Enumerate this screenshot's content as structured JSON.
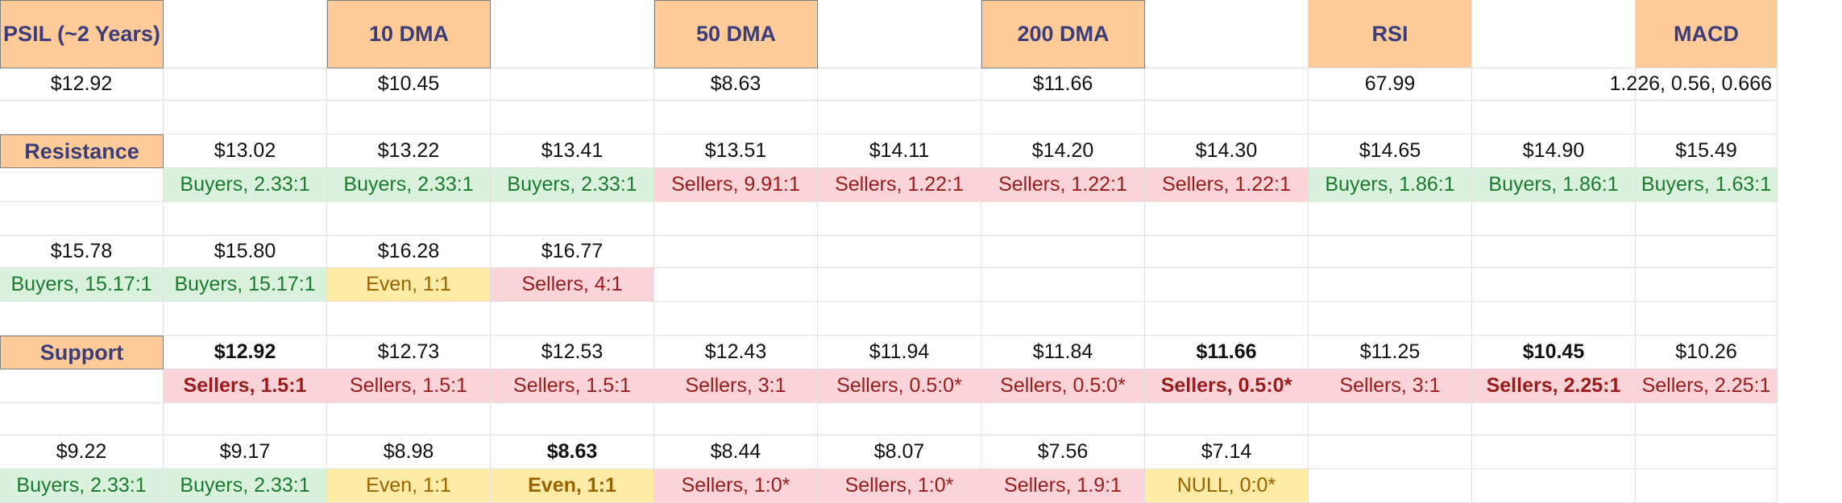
{
  "header": {
    "psil": "PSIL (~2 Years)",
    "dma10": "10 DMA",
    "dma50": "50 DMA",
    "dma200": "200 DMA",
    "rsi": "RSI",
    "macd": "MACD"
  },
  "current": {
    "price": "$12.92",
    "dma10": "$10.45",
    "dma50": "$8.63",
    "dma200": "$11.66",
    "rsi": "67.99",
    "macd": "1.226, 0.56, 0.666"
  },
  "resistance": {
    "label": "Resistance",
    "levels": [
      {
        "price": "$13.02",
        "ratio": "Buyers, 2.33:1",
        "tone": "buyers"
      },
      {
        "price": "$13.22",
        "ratio": "Buyers, 2.33:1",
        "tone": "buyers"
      },
      {
        "price": "$13.41",
        "ratio": "Buyers, 2.33:1",
        "tone": "buyers"
      },
      {
        "price": "$13.51",
        "ratio": "Sellers, 9.91:1",
        "tone": "sellers"
      },
      {
        "price": "$14.11",
        "ratio": "Sellers, 1.22:1",
        "tone": "sellers"
      },
      {
        "price": "$14.20",
        "ratio": "Sellers, 1.22:1",
        "tone": "sellers"
      },
      {
        "price": "$14.30",
        "ratio": "Sellers, 1.22:1",
        "tone": "sellers"
      },
      {
        "price": "$14.65",
        "ratio": "Buyers, 1.86:1",
        "tone": "buyers"
      },
      {
        "price": "$14.90",
        "ratio": "Buyers, 1.86:1",
        "tone": "buyers"
      },
      {
        "price": "$15.49",
        "ratio": "Buyers, 1.63:1",
        "tone": "buyers"
      },
      {
        "price": "$15.78",
        "ratio": "Buyers, 15.17:1",
        "tone": "buyers"
      },
      {
        "price": "$15.80",
        "ratio": "Buyers, 15.17:1",
        "tone": "buyers"
      },
      {
        "price": "$16.28",
        "ratio": "Even, 1:1",
        "tone": "even"
      },
      {
        "price": "$16.77",
        "ratio": "Sellers, 4:1",
        "tone": "sellers"
      }
    ]
  },
  "support": {
    "label": "Support",
    "levels": [
      {
        "price": "$12.92",
        "ratio": "Sellers, 1.5:1",
        "tone": "sellers",
        "bold": true
      },
      {
        "price": "$12.73",
        "ratio": "Sellers, 1.5:1",
        "tone": "sellers"
      },
      {
        "price": "$12.53",
        "ratio": "Sellers, 1.5:1",
        "tone": "sellers"
      },
      {
        "price": "$12.43",
        "ratio": "Sellers, 3:1",
        "tone": "sellers"
      },
      {
        "price": "$11.94",
        "ratio": "Sellers, 0.5:0*",
        "tone": "sellers"
      },
      {
        "price": "$11.84",
        "ratio": "Sellers, 0.5:0*",
        "tone": "sellers"
      },
      {
        "price": "$11.66",
        "ratio": "Sellers, 0.5:0*",
        "tone": "sellers",
        "bold": true
      },
      {
        "price": "$11.25",
        "ratio": "Sellers, 3:1",
        "tone": "sellers"
      },
      {
        "price": "$10.45",
        "ratio": "Sellers, 2.25:1",
        "tone": "sellers",
        "bold": true
      },
      {
        "price": "$10.26",
        "ratio": "Sellers, 2.25:1",
        "tone": "sellers"
      },
      {
        "price": "$9.22",
        "ratio": "Buyers, 2.33:1",
        "tone": "buyers"
      },
      {
        "price": "$9.17",
        "ratio": "Buyers, 2.33:1",
        "tone": "buyers"
      },
      {
        "price": "$8.98",
        "ratio": "Even, 1:1",
        "tone": "even"
      },
      {
        "price": "$8.63",
        "ratio": "Even, 1:1",
        "tone": "even",
        "bold": true
      },
      {
        "price": "$8.44",
        "ratio": "Sellers, 1:0*",
        "tone": "sellers"
      },
      {
        "price": "$8.07",
        "ratio": "Sellers, 1:0*",
        "tone": "sellers"
      },
      {
        "price": "$7.56",
        "ratio": "Sellers, 1.9:1",
        "tone": "sellers"
      },
      {
        "price": "$7.14",
        "ratio": "NULL, 0:0*",
        "tone": "even"
      }
    ]
  },
  "colors": {
    "header_bg": "#ffcc99",
    "header_text": "#3b3c7a",
    "buyers_bg": "#d9f1dd",
    "buyers_text": "#1a7b2e",
    "sellers_bg": "#fad4d8",
    "sellers_text": "#9b1b1b",
    "even_bg": "#fdeba6",
    "even_text": "#9a6300"
  }
}
